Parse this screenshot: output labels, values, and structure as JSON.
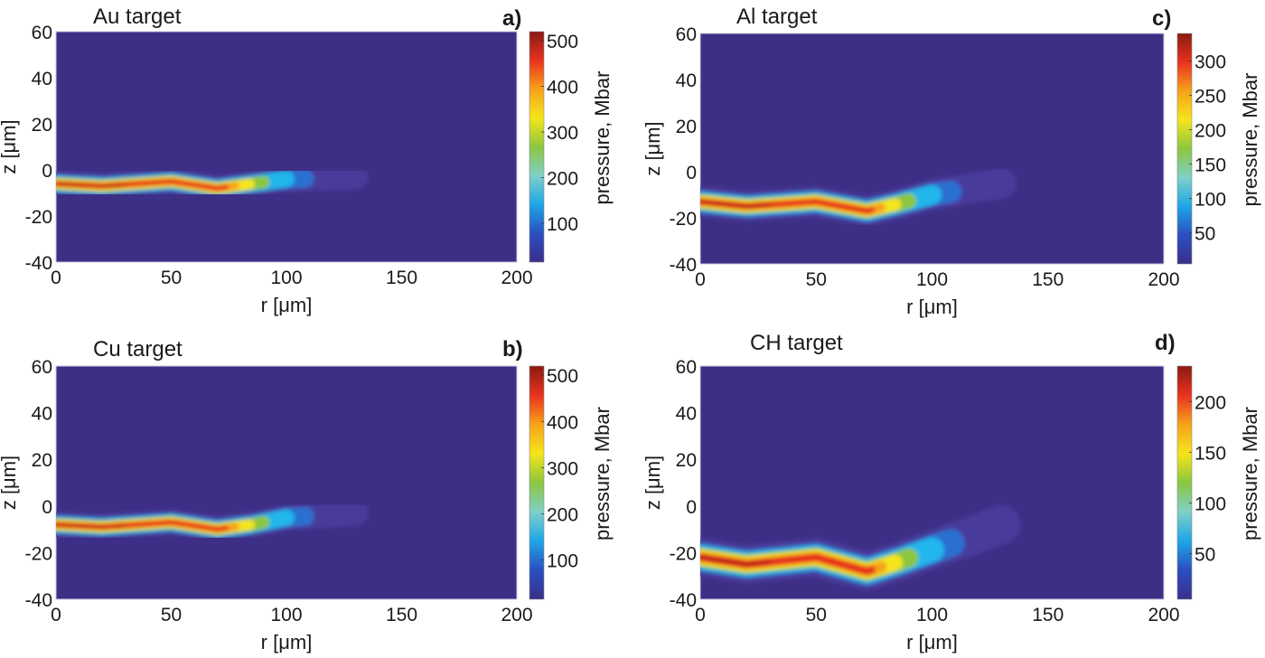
{
  "colors": {
    "background_field": "#3d2f86",
    "colormap": [
      "#3b2f8a",
      "#2a4fc0",
      "#1ea6e6",
      "#7fd0c8",
      "#8cc63f",
      "#f5e51b",
      "#f7a21b",
      "#e8321e",
      "#8a1a12"
    ]
  },
  "chart_data": [
    {
      "panel_label": "a)",
      "title": "Au target",
      "type": "heatmap",
      "xlabel": "r [μm]",
      "ylabel": "z [μm]",
      "xlim": [
        0,
        200
      ],
      "ylim": [
        -40,
        60
      ],
      "xticks": [
        "0",
        "50",
        "100",
        "150",
        "200"
      ],
      "yticks": [
        "-40",
        "-20",
        "0",
        "20",
        "40",
        "60"
      ],
      "colorbar": {
        "label": "pressure, Mbar",
        "range": [
          15,
          520
        ],
        "ticks": [
          "100",
          "200",
          "300",
          "400",
          "500"
        ]
      },
      "plume_centerline": {
        "r": [
          0,
          20,
          50,
          70,
          85,
          100,
          130
        ],
        "z": [
          -6,
          -7,
          -5,
          -8,
          -6,
          -4,
          -3
        ]
      }
    },
    {
      "panel_label": "c)",
      "title": "Al target",
      "type": "heatmap",
      "xlabel": "r [μm]",
      "ylabel": "z [μm]",
      "xlim": [
        0,
        200
      ],
      "ylim": [
        -40,
        60
      ],
      "xticks": [
        "0",
        "50",
        "100",
        "150",
        "200"
      ],
      "yticks": [
        "-40",
        "-20",
        "0",
        "20",
        "40",
        "60"
      ],
      "colorbar": {
        "label": "pressure, Mbar",
        "range": [
          5,
          340
        ],
        "ticks": [
          "50",
          "100",
          "150",
          "200",
          "250",
          "300"
        ]
      },
      "plume_centerline": {
        "r": [
          0,
          20,
          50,
          72,
          85,
          100,
          130
        ],
        "z": [
          -13,
          -15,
          -13,
          -17,
          -14,
          -10,
          -5
        ]
      }
    },
    {
      "panel_label": "b)",
      "title": "Cu target",
      "type": "heatmap",
      "xlabel": "r [μm]",
      "ylabel": "z [μm]",
      "xlim": [
        0,
        200
      ],
      "ylim": [
        -40,
        60
      ],
      "xticks": [
        "0",
        "50",
        "100",
        "150",
        "200"
      ],
      "yticks": [
        "-40",
        "-20",
        "0",
        "20",
        "40",
        "60"
      ],
      "colorbar": {
        "label": "pressure, Mbar",
        "range": [
          15,
          520
        ],
        "ticks": [
          "100",
          "200",
          "300",
          "400",
          "500"
        ]
      },
      "plume_centerline": {
        "r": [
          0,
          20,
          50,
          70,
          85,
          100,
          130
        ],
        "z": [
          -8,
          -9,
          -7,
          -10,
          -8,
          -5,
          -3
        ]
      }
    },
    {
      "panel_label": "d)",
      "title": "CH target",
      "type": "heatmap",
      "xlabel": "r [μm]",
      "ylabel": "z [μm]",
      "xlim": [
        0,
        200
      ],
      "ylim": [
        -40,
        60
      ],
      "xticks": [
        "0",
        "50",
        "100",
        "150",
        "200"
      ],
      "yticks": [
        "-40",
        "-20",
        "0",
        "20",
        "40",
        "60"
      ],
      "colorbar": {
        "label": "pressure, Mbar",
        "range": [
          5,
          235
        ],
        "ticks": [
          "50",
          "100",
          "150",
          "200"
        ]
      },
      "plume_centerline": {
        "r": [
          0,
          20,
          50,
          72,
          85,
          105,
          130
        ],
        "z": [
          -22,
          -25,
          -22,
          -28,
          -24,
          -17,
          -8
        ]
      }
    }
  ]
}
